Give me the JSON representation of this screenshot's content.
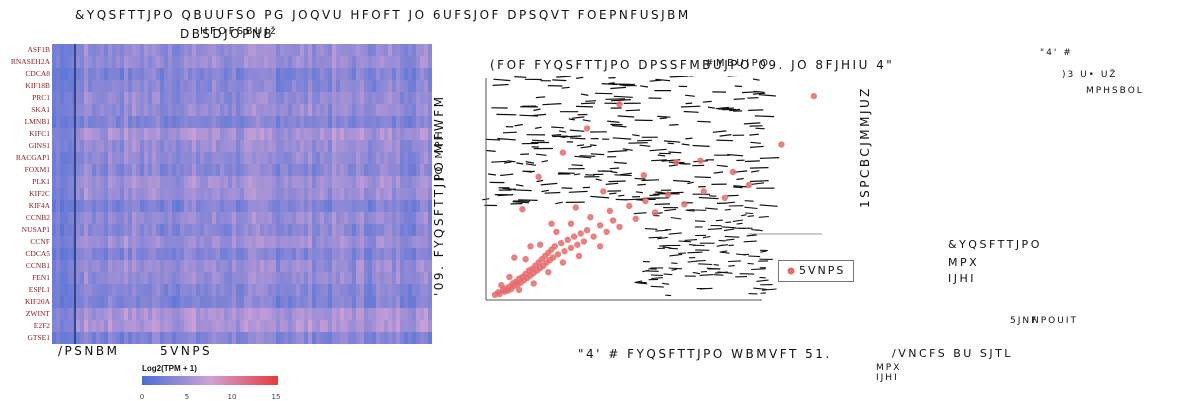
{
  "panel_a": {
    "title": "&YQSFTTJPO QBUUFSO PG JOQVU HFOFT JO 6UFSJOF DPSQVT FOEPNFUSJBM",
    "subtitle": "DBSDJOPNB",
    "subtitle_overlay": "HFOFSBUJž",
    "genes": [
      "ASF1B",
      "RNASEH2A",
      "CDCA8",
      "KIF18B",
      "PRC1",
      "SKA1",
      "LMNB1",
      "KIFC1",
      "GINS1",
      "RACGAP1",
      "FOXM1",
      "PLK1",
      "KIF2C",
      "KIF4A",
      "CCNB2",
      "NUSAP1",
      "CCNF",
      "CDCA5",
      "CCNB1",
      "FEN1",
      "ESPL1",
      "KIF20A",
      "ZWINT",
      "E2F2",
      "GTSE1"
    ],
    "normal_label": "/PSNBM",
    "tumor_label": "5VNPS",
    "legend_title": "Log2(TPM + 1)",
    "legend_ticks": [
      "0",
      "5",
      "10",
      "15"
    ],
    "colors": {
      "low": "#4a6fd6",
      "mid": "#cfa2d6",
      "high": "#e83a3a",
      "divider": "#1d3566"
    }
  },
  "panel_b": {
    "vertical_label_1": "'09. FYQSFTTJPO MFWFM",
    "vertical_label_overlay": "JO MPH",
    "vertical_label_2": "1SPCBCJMMJUZ",
    "title": "(FOF FYQSFTTJPO DPSSFMBUJPO 09. JO 8FJHIU 4\"",
    "title_overlay": "#MBUJPO",
    "x_label": "\"4' # FYQSFTTJPO WBMVFT 51.",
    "legend_label": "5VNPS",
    "point_color": "#e86a6a",
    "chart_data": {
      "type": "scatter",
      "title": "(FOF FYQSFTTJPO DPSSFMBUJPO 09. JO 8FJHIU 4\"",
      "xlabel": "\"4' # FYQSFTTJPO WBMVFT 51.",
      "ylabel": "'09. FYQSFTTJPO MFWFM",
      "series": [
        {
          "name": "5VNPS",
          "points": [
            [
              0.3,
              0.2
            ],
            [
              0.5,
              0.35
            ],
            [
              0.6,
              0.25
            ],
            [
              0.8,
              0.5
            ],
            [
              0.9,
              0.4
            ],
            [
              1.0,
              0.6
            ],
            [
              1.1,
              0.45
            ],
            [
              1.2,
              0.7
            ],
            [
              1.3,
              0.55
            ],
            [
              1.4,
              0.9
            ],
            [
              1.5,
              0.75
            ],
            [
              1.6,
              1.0
            ],
            [
              1.7,
              0.85
            ],
            [
              1.8,
              1.2
            ],
            [
              1.9,
              0.95
            ],
            [
              2.0,
              1.3
            ],
            [
              2.1,
              1.1
            ],
            [
              2.2,
              1.5
            ],
            [
              2.3,
              1.25
            ],
            [
              2.4,
              1.7
            ],
            [
              2.5,
              1.4
            ],
            [
              2.6,
              1.8
            ],
            [
              2.7,
              1.55
            ],
            [
              2.8,
              2.0
            ],
            [
              2.9,
              1.7
            ],
            [
              3.0,
              2.2
            ],
            [
              3.1,
              1.85
            ],
            [
              3.2,
              2.4
            ],
            [
              3.3,
              2.0
            ],
            [
              3.4,
              2.6
            ],
            [
              3.5,
              2.2
            ],
            [
              3.6,
              2.8
            ],
            [
              3.7,
              2.35
            ],
            [
              3.8,
              3.0
            ],
            [
              3.9,
              2.5
            ],
            [
              4.0,
              3.2
            ],
            [
              4.2,
              2.7
            ],
            [
              4.4,
              3.4
            ],
            [
              4.6,
              2.9
            ],
            [
              4.8,
              3.6
            ],
            [
              5.0,
              3.1
            ],
            [
              5.2,
              3.8
            ],
            [
              5.4,
              3.3
            ],
            [
              5.6,
              4.0
            ],
            [
              5.8,
              3.5
            ],
            [
              6.0,
              4.2
            ],
            [
              6.4,
              3.8
            ],
            [
              6.8,
              4.5
            ],
            [
              7.2,
              4.1
            ],
            [
              7.6,
              4.8
            ],
            [
              0.7,
              0.8
            ],
            [
              1.2,
              1.3
            ],
            [
              1.8,
              0.5
            ],
            [
              2.2,
              2.4
            ],
            [
              2.7,
              0.9
            ],
            [
              3.1,
              3.3
            ],
            [
              3.6,
              1.6
            ],
            [
              4.1,
              4.1
            ],
            [
              4.5,
              2.2
            ],
            [
              5.0,
              4.6
            ],
            [
              5.5,
              2.6
            ],
            [
              6.2,
              5.0
            ],
            [
              6.8,
              3.2
            ],
            [
              7.4,
              5.4
            ],
            [
              8.0,
              4.4
            ],
            [
              8.6,
              5.7
            ],
            [
              9.0,
              4.9
            ],
            [
              9.6,
              6.0
            ],
            [
              10.2,
              5.3
            ],
            [
              11.0,
              6.4
            ],
            [
              12.0,
              5.8
            ],
            [
              13.2,
              6.6
            ],
            [
              14.5,
              6.2
            ],
            [
              16.0,
              7.0
            ],
            [
              2.0,
              5.5
            ],
            [
              3.0,
              7.5
            ],
            [
              4.5,
              9.0
            ],
            [
              6.0,
              10.5
            ],
            [
              8.0,
              12.0
            ],
            [
              13.0,
              8.5
            ],
            [
              1.5,
              2.5
            ],
            [
              2.5,
              3.2
            ],
            [
              3.8,
              4.6
            ],
            [
              5.3,
              5.6
            ],
            [
              7.0,
              6.6
            ],
            [
              9.5,
              7.6
            ],
            [
              11.5,
              8.4
            ],
            [
              15.0,
              7.8
            ],
            [
              18.0,
              9.5
            ],
            [
              20.0,
              12.5
            ]
          ]
        }
      ]
    }
  },
  "panel_c": {
    "label1": "\"4' #",
    "label2": ")3 U• UŽ",
    "label3": "MPHSBOL",
    "exp_label": "&YQSFTTJPO",
    "exp_low": "MPX",
    "exp_high": "IJHI",
    "time_label": "5JNF",
    "time_overlay": "NPOUIT",
    "risk_label": "/VNCFS BU SJTL",
    "risk_low": "MPX",
    "risk_high": "IJHI"
  }
}
